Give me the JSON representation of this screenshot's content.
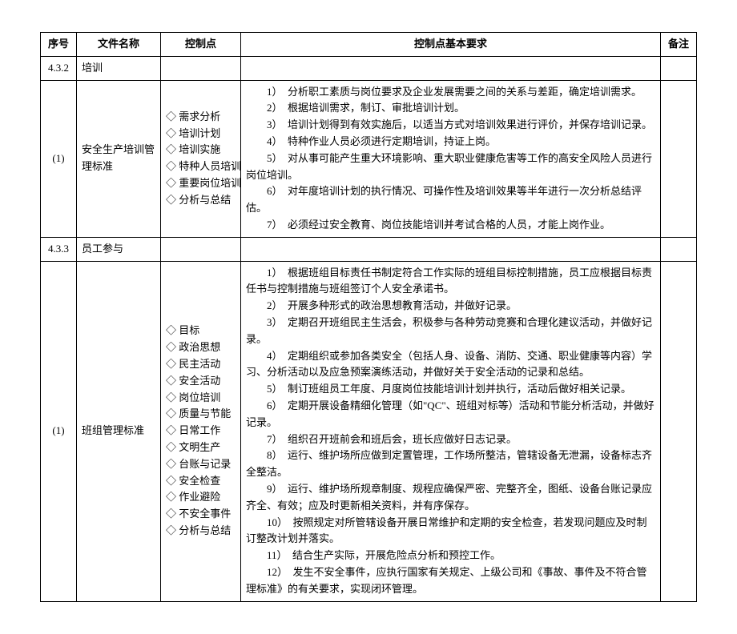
{
  "headers": {
    "seq": "序号",
    "file": "文件名称",
    "ctrl": "控制点",
    "req": "控制点基本要求",
    "note": "备注"
  },
  "rows": [
    {
      "seq": "4.3.2",
      "file": "培训",
      "ctrl": [],
      "req": []
    },
    {
      "seq": "(1)",
      "file": "安全生产培训管理标准",
      "ctrl": [
        "◇ 需求分析",
        "◇ 培训计划",
        "◇ 培训实施",
        "◇ 特种人员培训",
        "◇ 重要岗位培训",
        "◇ 分析与总结"
      ],
      "req": [
        "1）　分析职工素质与岗位要求及企业发展需要之间的关系与差距，确定培训需求。",
        "2）　根据培训需求，制订、审批培训计划。",
        "3）　培训计划得到有效实施后，以适当方式对培训效果进行评价，并保存培训记录。",
        "4）　特种作业人员必须进行定期培训，持证上岗。",
        "5）　对从事可能产生重大环境影响、重大职业健康危害等工作的高安全风险人员进行岗位培训。",
        "6）　对年度培训计划的执行情况、可操作性及培训效果等半年进行一次分析总结评估。",
        "7）　必须经过安全教育、岗位技能培训并考试合格的人员，才能上岗作业。"
      ]
    },
    {
      "seq": "4.3.3",
      "file": "员工参与",
      "ctrl": [],
      "req": []
    },
    {
      "seq": "(1)",
      "file": "班组管理标准",
      "ctrl": [
        "◇ 目标",
        "◇ 政治思想",
        "◇ 民主活动",
        "◇ 安全活动",
        "◇ 岗位培训",
        "◇ 质量与节能",
        "◇ 日常工作",
        "◇ 文明生产",
        "◇ 台账与记录",
        "◇ 安全检查",
        "◇ 作业避险",
        "◇ 不安全事件",
        "◇ 分析与总结"
      ],
      "req": [
        "1）　根据班组目标责任书制定符合工作实际的班组目标控制措施，员工应根据目标责任书与控制措施与班组签订个人安全承诺书。",
        "2）　开展多种形式的政治思想教育活动，并做好记录。",
        "3）　定期召开班组民主生活会，积极参与各种劳动竞赛和合理化建议活动，并做好记录。",
        "4）　定期组织或参加各类安全（包括人身、设备、消防、交通、职业健康等内容）学习、分析活动以及应急预案演练活动，并做好关于安全活动的记录和总结。",
        "5）　制订班组员工年度、月度岗位技能培训计划并执行，活动后做好相关记录。",
        "6）　定期开展设备精细化管理（如\"QC\"、班组对标等）活动和节能分析活动，并做好记录。",
        "7）　组织召开班前会和班后会，班长应做好日志记录。",
        "8）　运行、维护场所应做到定置管理，工作场所整洁，管辖设备无泄漏，设备标志齐全整洁。",
        "9）　运行、维护场所规章制度、规程应确保严密、完整齐全，图纸、设备台账记录应齐全、有效；应及时更新相关资料，并有序保存。",
        "10）　按照规定对所管辖设备开展日常维护和定期的安全检查，若发现问题应及时制订整改计划并落实。",
        "11）　结合生产实际，开展危险点分析和预控工作。",
        "12）　发生不安全事件，应执行国家有关规定、上级公司和《事故、事件及不符合管理标准》的有关要求，实现闭环管理。"
      ]
    }
  ]
}
